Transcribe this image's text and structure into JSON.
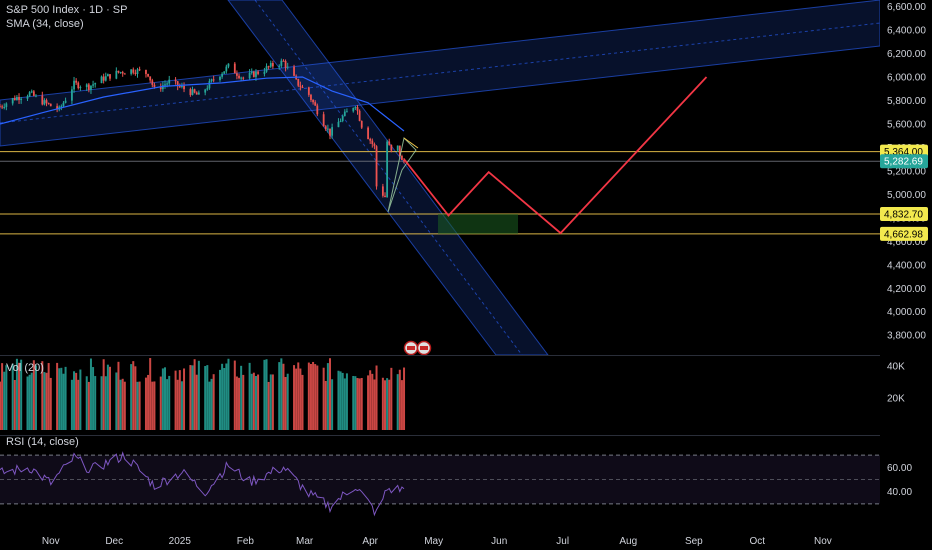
{
  "header": {
    "title": "S&P 500 Index · 1D · SP",
    "sma_label": "SMA (34, close)",
    "vol_label": "Vol (20)",
    "rsi_label": "RSI (14, close)"
  },
  "colors": {
    "background": "#000000",
    "candle_up": "#26a69a",
    "candle_down": "#ef5350",
    "channel_fill": "#2962ff",
    "sma_line": "#2962ff",
    "level_line": "#f2c94c",
    "projection": "#f23645",
    "rsi_line": "#7e57c2",
    "target_zone": "#1b5e20"
  },
  "chart_data": [
    {
      "type": "candlestick",
      "title": "S&P 500 Index · 1D · SP",
      "ylim": [
        3700,
        6700
      ],
      "y_ticks": [
        3800,
        4000,
        4200,
        4400,
        4600,
        4800,
        5000,
        5200,
        5400,
        5600,
        5800,
        6000,
        6200,
        6400,
        6600
      ],
      "y_tick_labels": [
        "3,800.00",
        "4,000.00",
        "4,200.00",
        "4,400.00",
        "4,600.00",
        "4,800.00",
        "5,000.00",
        "5,200.00",
        "5,400.00",
        "5,600.00",
        "5,800.00",
        "6,000.00",
        "6,200.00",
        "6,400.00",
        "6,600.00"
      ],
      "x_labels": [
        "Nov",
        "Dec",
        "2025",
        "Feb",
        "Mar",
        "Apr",
        "May",
        "Jun",
        "Jul",
        "Aug",
        "Sep",
        "Oct",
        "Nov"
      ],
      "x_label_dates": [
        "2024-11-01",
        "2024-12-01",
        "2025-01-01",
        "2025-02-01",
        "2025-03-01",
        "2025-04-01",
        "2025-05-01",
        "2025-06-01",
        "2025-07-01",
        "2025-08-01",
        "2025-09-01",
        "2025-10-01",
        "2025-11-01"
      ],
      "xlim": [
        "2024-10-08",
        "2025-11-28"
      ],
      "close_series": [
        [
          "2024-10-08",
          5750
        ],
        [
          "2024-10-15",
          5820
        ],
        [
          "2024-10-22",
          5860
        ],
        [
          "2024-10-29",
          5780
        ],
        [
          "2024-11-05",
          5720
        ],
        [
          "2024-11-12",
          5940
        ],
        [
          "2024-11-19",
          5920
        ],
        [
          "2024-11-26",
          5990
        ],
        [
          "2024-12-03",
          6040
        ],
        [
          "2024-12-10",
          6060
        ],
        [
          "2024-12-17",
          6030
        ],
        [
          "2024-12-20",
          5890
        ],
        [
          "2024-12-27",
          5960
        ],
        [
          "2025-01-03",
          5900
        ],
        [
          "2025-01-10",
          5840
        ],
        [
          "2025-01-17",
          5980
        ],
        [
          "2025-01-24",
          6090
        ],
        [
          "2025-01-31",
          5990
        ],
        [
          "2025-02-07",
          6040
        ],
        [
          "2025-02-14",
          6100
        ],
        [
          "2025-02-19",
          6130
        ],
        [
          "2025-02-25",
          5960
        ],
        [
          "2025-03-03",
          5850
        ],
        [
          "2025-03-10",
          5610
        ],
        [
          "2025-03-13",
          5520
        ],
        [
          "2025-03-19",
          5660
        ],
        [
          "2025-03-25",
          5770
        ],
        [
          "2025-03-28",
          5590
        ],
        [
          "2025-04-03",
          5400
        ],
        [
          "2025-04-04",
          5070
        ],
        [
          "2025-04-08",
          4980
        ],
        [
          "2025-04-09",
          5450
        ],
        [
          "2025-04-11",
          5360
        ],
        [
          "2025-04-14",
          5400
        ],
        [
          "2025-04-16",
          5280
        ],
        [
          "2025-04-17",
          5282.69
        ]
      ],
      "sma_series": [
        [
          "2024-10-08",
          5600
        ],
        [
          "2024-10-29",
          5700
        ],
        [
          "2024-11-26",
          5830
        ],
        [
          "2024-12-24",
          5920
        ],
        [
          "2025-01-21",
          5950
        ],
        [
          "2025-02-11",
          5990
        ],
        [
          "2025-02-28",
          6000
        ],
        [
          "2025-03-14",
          5880
        ],
        [
          "2025-03-31",
          5780
        ],
        [
          "2025-04-17",
          5540
        ]
      ],
      "price_levels": [
        {
          "value": 5364.0,
          "label": "5,364.00"
        },
        {
          "value": 5282.69,
          "label": "5,282.69"
        },
        {
          "value": 4832.7,
          "label": "4,832.70"
        },
        {
          "value": 4662.98,
          "label": "4,662.98"
        }
      ],
      "projection_path": [
        [
          "2025-04-17",
          5300
        ],
        [
          "2025-05-08",
          4820
        ],
        [
          "2025-05-27",
          5190
        ],
        [
          "2025-06-30",
          4670
        ],
        [
          "2025-09-07",
          6000
        ]
      ]
    },
    {
      "type": "bar",
      "title": "Vol (20)",
      "ylim": [
        0,
        45000
      ],
      "y_ticks": [
        20000,
        40000
      ],
      "y_tick_labels": [
        "20K",
        "40K"
      ]
    },
    {
      "type": "line",
      "title": "RSI (14, close)",
      "ylim": [
        20,
        80
      ],
      "y_ticks": [
        40,
        60
      ],
      "y_tick_labels": [
        "40.00",
        "60.00"
      ],
      "band": [
        30,
        70
      ],
      "series": [
        {
          "values": [
            [
              "2024-10-08",
              55
            ],
            [
              "2024-10-22",
              60
            ],
            [
              "2024-11-01",
              47
            ],
            [
              "2024-11-12",
              68
            ],
            [
              "2024-11-20",
              58
            ],
            [
              "2024-12-06",
              70
            ],
            [
              "2024-12-20",
              45
            ],
            [
              "2025-01-02",
              56
            ],
            [
              "2025-01-13",
              40
            ],
            [
              "2025-01-24",
              62
            ],
            [
              "2025-02-03",
              48
            ],
            [
              "2025-02-19",
              60
            ],
            [
              "2025-03-03",
              38
            ],
            [
              "2025-03-13",
              28
            ],
            [
              "2025-03-25",
              45
            ],
            [
              "2025-04-04",
              22
            ],
            [
              "2025-04-09",
              42
            ],
            [
              "2025-04-17",
              42
            ]
          ]
        }
      ]
    }
  ]
}
